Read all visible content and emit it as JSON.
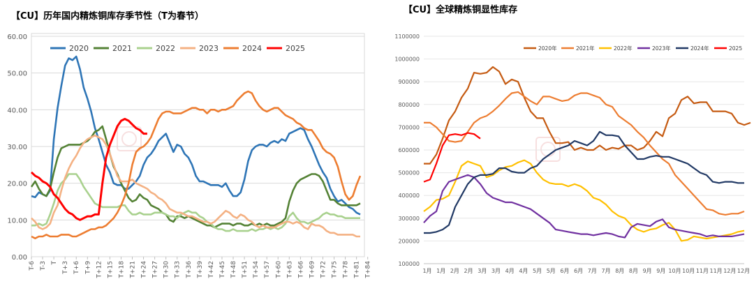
{
  "chart_data": [
    {
      "type": "line",
      "title": "【CU】历年国内精炼铜库存季节性（T为春节）",
      "ylim": [
        0,
        60
      ],
      "yticks": [
        "0.00",
        "10.00",
        "20.00",
        "30.00",
        "40.00",
        "50.00",
        "60.00"
      ],
      "ticks": [
        "T-6",
        "T-3",
        "T",
        "T+3",
        "T+6",
        "T+9",
        "T+12",
        "T+15",
        "T+18",
        "T+21",
        "T+24",
        "T+27",
        "T+30",
        "T+33",
        "T+36",
        "T+39",
        "T+42",
        "T+45",
        "T+48",
        "T+51",
        "T+54",
        "T+57",
        "T+60",
        "T+63",
        "T+66",
        "T+69",
        "T+72",
        "T+75",
        "T+78",
        "T+81",
        "T+84"
      ],
      "x_start": -6,
      "legend": [
        "2020",
        "2021",
        "2022",
        "2023",
        "2024",
        "2025"
      ],
      "series": [
        {
          "name": "2020",
          "color": "#2e75b6",
          "values": [
            16.5,
            16.2,
            17.5,
            17.0,
            16.5,
            18.0,
            32.0,
            40.5,
            46.5,
            52.0,
            54.0,
            53.5,
            54.5,
            51.0,
            46.0,
            43.0,
            39.5,
            35.0,
            32.0,
            28.5,
            25.0,
            23.0,
            20.0,
            19.5,
            19.5,
            18.5,
            18.5,
            19.5,
            20.5,
            22.0,
            25.0,
            27.0,
            28.0,
            29.5,
            31.5,
            32.5,
            33.5,
            31.0,
            28.5,
            30.5,
            30.0,
            28.0,
            27.0,
            25.0,
            22.0,
            20.5,
            20.5,
            20.0,
            19.5,
            19.5,
            19.5,
            19.0,
            20.0,
            18.0,
            16.5,
            16.5,
            17.5,
            21.0,
            26.0,
            29.0,
            30.0,
            30.5,
            30.5,
            30.0,
            31.0,
            31.5,
            31.0,
            32.0,
            31.5,
            33.5,
            34.0,
            34.5,
            35.0,
            34.5,
            32.0,
            30.0,
            27.5,
            25.0,
            23.0,
            21.5,
            18.5,
            16.5,
            15.0,
            15.5,
            14.5,
            13.5,
            13.0,
            12.0,
            11.5
          ]
        },
        {
          "name": "2021",
          "color": "#548235",
          "values": [
            19.0,
            20.5,
            18.5,
            17.0,
            16.5,
            18.5,
            23.0,
            27.0,
            29.5,
            30.0,
            30.5,
            30.5,
            30.5,
            30.5,
            31.0,
            31.5,
            32.5,
            34.0,
            34.5,
            35.5,
            32.0,
            28.0,
            24.5,
            22.5,
            20.0,
            18.0,
            16.0,
            15.0,
            15.5,
            17.0,
            16.0,
            15.5,
            14.0,
            13.5,
            13.0,
            12.0,
            11.5,
            10.0,
            9.5,
            11.0,
            11.0,
            10.5,
            11.0,
            10.5,
            10.0,
            9.5,
            9.0,
            8.5,
            8.5,
            8.0,
            8.5,
            9.0,
            9.0,
            9.0,
            8.5,
            9.0,
            9.0,
            8.5,
            8.5,
            9.0,
            8.5,
            9.0,
            8.5,
            9.0,
            8.5,
            8.5,
            9.0,
            9.5,
            10.5,
            15.0,
            18.0,
            20.0,
            21.0,
            21.5,
            22.0,
            22.5,
            22.5,
            22.0,
            20.5,
            18.0,
            15.5,
            15.5,
            14.5,
            14.0,
            14.0,
            14.0,
            14.0,
            14.0,
            14.5
          ]
        },
        {
          "name": "2022",
          "color": "#a9d18e",
          "values": [
            8.5,
            8.5,
            9.0,
            8.5,
            9.0,
            11.5,
            14.5,
            18.0,
            20.0,
            21.0,
            22.5,
            22.5,
            22.5,
            21.0,
            19.0,
            17.5,
            16.0,
            14.5,
            14.0,
            13.5,
            13.5,
            13.5,
            13.5,
            13.5,
            14.0,
            14.0,
            12.5,
            11.5,
            11.5,
            12.0,
            11.5,
            11.5,
            11.5,
            12.0,
            12.0,
            12.0,
            11.5,
            11.0,
            11.0,
            10.5,
            11.5,
            12.0,
            12.5,
            12.0,
            12.0,
            11.0,
            10.5,
            9.5,
            9.0,
            8.0,
            7.5,
            7.5,
            7.0,
            7.0,
            7.5,
            7.0,
            7.0,
            7.0,
            7.0,
            7.5,
            7.0,
            7.5,
            7.5,
            8.0,
            7.5,
            8.0,
            7.5,
            8.0,
            9.0,
            11.0,
            12.0,
            10.5,
            9.5,
            9.5,
            9.0,
            9.5,
            10.0,
            10.5,
            11.5,
            12.0,
            11.5,
            11.5,
            11.0,
            11.0,
            10.5,
            10.5,
            10.5,
            10.5,
            10.5
          ]
        },
        {
          "name": "2023",
          "color": "#f4b183",
          "values": [
            10.5,
            9.5,
            8.0,
            7.5,
            8.0,
            9.0,
            12.0,
            14.0,
            18.0,
            21.5,
            24.0,
            26.0,
            27.5,
            29.5,
            31.0,
            32.0,
            32.5,
            33.0,
            32.5,
            32.0,
            30.5,
            28.0,
            25.0,
            22.0,
            20.5,
            20.5,
            20.5,
            21.0,
            20.0,
            19.5,
            19.0,
            18.5,
            17.5,
            17.0,
            16.0,
            15.5,
            14.5,
            13.0,
            12.5,
            12.0,
            12.0,
            11.5,
            11.0,
            11.0,
            10.5,
            10.0,
            9.5,
            9.5,
            9.0,
            9.5,
            10.5,
            11.5,
            12.5,
            12.0,
            11.0,
            10.5,
            11.5,
            11.0,
            10.0,
            9.5,
            8.5,
            8.0,
            8.5,
            8.0,
            8.0,
            8.0,
            8.5,
            9.0,
            9.5,
            9.5,
            9.0,
            9.5,
            9.0,
            8.0,
            7.5,
            9.0,
            8.5,
            8.5,
            8.0,
            7.0,
            6.5,
            6.5,
            6.0,
            6.0,
            6.0,
            6.0,
            6.0,
            5.5,
            5.5
          ]
        },
        {
          "name": "2024",
          "color": "#ed7d31",
          "values": [
            5.5,
            5.0,
            5.5,
            5.5,
            6.0,
            5.5,
            5.5,
            5.5,
            6.0,
            6.0,
            6.0,
            5.5,
            5.5,
            6.0,
            6.5,
            7.0,
            7.5,
            7.5,
            8.0,
            8.0,
            8.5,
            9.5,
            10.5,
            12.0,
            14.0,
            16.5,
            20.0,
            25.0,
            28.5,
            29.5,
            30.0,
            31.0,
            32.5,
            35.0,
            37.5,
            39.0,
            39.5,
            39.5,
            39.0,
            39.0,
            39.0,
            39.5,
            40.0,
            40.5,
            40.5,
            40.0,
            40.0,
            39.0,
            40.0,
            40.0,
            39.5,
            40.0,
            40.0,
            40.5,
            41.0,
            42.5,
            43.5,
            44.5,
            45.0,
            44.5,
            42.5,
            41.0,
            40.0,
            39.5,
            40.0,
            40.5,
            40.5,
            39.5,
            38.5,
            38.0,
            37.5,
            36.5,
            36.0,
            35.0,
            34.5,
            34.5,
            33.0,
            31.5,
            29.5,
            28.5,
            28.0,
            27.0,
            24.5,
            20.5,
            17.0,
            15.5,
            16.5,
            19.5,
            22.0
          ]
        },
        {
          "name": "2025",
          "color": "#ff0000",
          "values": [
            23.0,
            22.0,
            21.5,
            20.5,
            20.0,
            19.0,
            17.0,
            16.0,
            14.5,
            13.0,
            12.0,
            11.5,
            10.5,
            10.0,
            10.5,
            11.0,
            11.0,
            11.5,
            11.5,
            20.0,
            27.0,
            30.5,
            33.0,
            35.5,
            37.0,
            37.5,
            37.0,
            36.0,
            35.0,
            34.5,
            33.5,
            33.5
          ]
        }
      ]
    },
    {
      "type": "line",
      "title": "【CU】全球精炼铜显性库存",
      "ylim": [
        100000,
        1100000
      ],
      "yticks": [
        "100000",
        "200000",
        "300000",
        "400000",
        "500000",
        "600000",
        "700000",
        "800000",
        "900000",
        "1000000",
        "1100000"
      ],
      "ticks": [
        "1月",
        "1月",
        "2月",
        "2月",
        "3月",
        "3月",
        "4月",
        "4月",
        "5月",
        "5月",
        "6月",
        "6月",
        "7月",
        "7月",
        "8月",
        "8月",
        "9月",
        "9月",
        "10月",
        "10月",
        "11月",
        "11月",
        "12月",
        "12月"
      ],
      "legend": [
        "2020年",
        "2021年",
        "2022年",
        "2023年",
        "2024年",
        "2025"
      ],
      "series": [
        {
          "name": "2020年",
          "color": "#c55a11",
          "values": [
            540000,
            540000,
            580000,
            650000,
            730000,
            770000,
            830000,
            870000,
            940000,
            935000,
            940000,
            965000,
            945000,
            890000,
            910000,
            900000,
            830000,
            770000,
            740000,
            740000,
            680000,
            630000,
            630000,
            635000,
            600000,
            610000,
            600000,
            600000,
            620000,
            600000,
            610000,
            605000,
            620000,
            620000,
            600000,
            610000,
            640000,
            680000,
            660000,
            740000,
            760000,
            820000,
            835000,
            805000,
            810000,
            810000,
            770000,
            770000,
            770000,
            760000,
            720000,
            710000,
            720000
          ]
        },
        {
          "name": "2021年",
          "color": "#ed7d31",
          "values": [
            720000,
            720000,
            700000,
            670000,
            640000,
            635000,
            640000,
            680000,
            720000,
            740000,
            750000,
            770000,
            795000,
            825000,
            850000,
            855000,
            835000,
            815000,
            800000,
            835000,
            835000,
            825000,
            815000,
            820000,
            840000,
            850000,
            850000,
            840000,
            830000,
            800000,
            790000,
            750000,
            730000,
            710000,
            680000,
            655000,
            620000,
            590000,
            560000,
            540000,
            490000,
            460000,
            430000,
            400000,
            370000,
            340000,
            335000,
            320000,
            315000,
            320000,
            320000,
            330000
          ]
        },
        {
          "name": "2022年",
          "color": "#ffc000",
          "values": [
            330000,
            350000,
            380000,
            385000,
            400000,
            460000,
            530000,
            550000,
            540000,
            530000,
            480000,
            490000,
            510000,
            525000,
            530000,
            545000,
            555000,
            540000,
            500000,
            470000,
            455000,
            450000,
            450000,
            440000,
            450000,
            440000,
            420000,
            390000,
            380000,
            360000,
            330000,
            310000,
            300000,
            270000,
            250000,
            240000,
            250000,
            255000,
            270000,
            280000,
            250000,
            200000,
            205000,
            220000,
            215000,
            210000,
            215000,
            220000,
            225000,
            230000,
            240000,
            245000
          ]
        },
        {
          "name": "2023年",
          "color": "#7030a0",
          "values": [
            280000,
            310000,
            330000,
            420000,
            460000,
            470000,
            480000,
            490000,
            480000,
            450000,
            410000,
            390000,
            380000,
            370000,
            370000,
            360000,
            350000,
            340000,
            320000,
            300000,
            280000,
            250000,
            245000,
            240000,
            235000,
            230000,
            230000,
            225000,
            230000,
            235000,
            230000,
            220000,
            215000,
            260000,
            275000,
            270000,
            265000,
            285000,
            295000,
            260000,
            250000,
            245000,
            240000,
            235000,
            230000,
            220000,
            225000,
            220000,
            220000,
            220000,
            225000,
            230000
          ]
        },
        {
          "name": "2024年",
          "color": "#203864",
          "values": [
            235000,
            235000,
            240000,
            250000,
            270000,
            350000,
            400000,
            450000,
            480000,
            490000,
            490000,
            495000,
            520000,
            520000,
            505000,
            500000,
            500000,
            520000,
            530000,
            560000,
            580000,
            600000,
            610000,
            620000,
            640000,
            630000,
            620000,
            640000,
            680000,
            665000,
            665000,
            660000,
            620000,
            590000,
            560000,
            560000,
            570000,
            575000,
            570000,
            570000,
            560000,
            550000,
            540000,
            520000,
            500000,
            490000,
            460000,
            455000,
            460000,
            460000,
            455000,
            455000
          ]
        },
        {
          "name": "2025",
          "color": "#ff0000",
          "values": [
            460000,
            470000,
            540000,
            620000,
            665000,
            670000,
            665000,
            675000,
            670000,
            650000
          ]
        }
      ]
    }
  ]
}
